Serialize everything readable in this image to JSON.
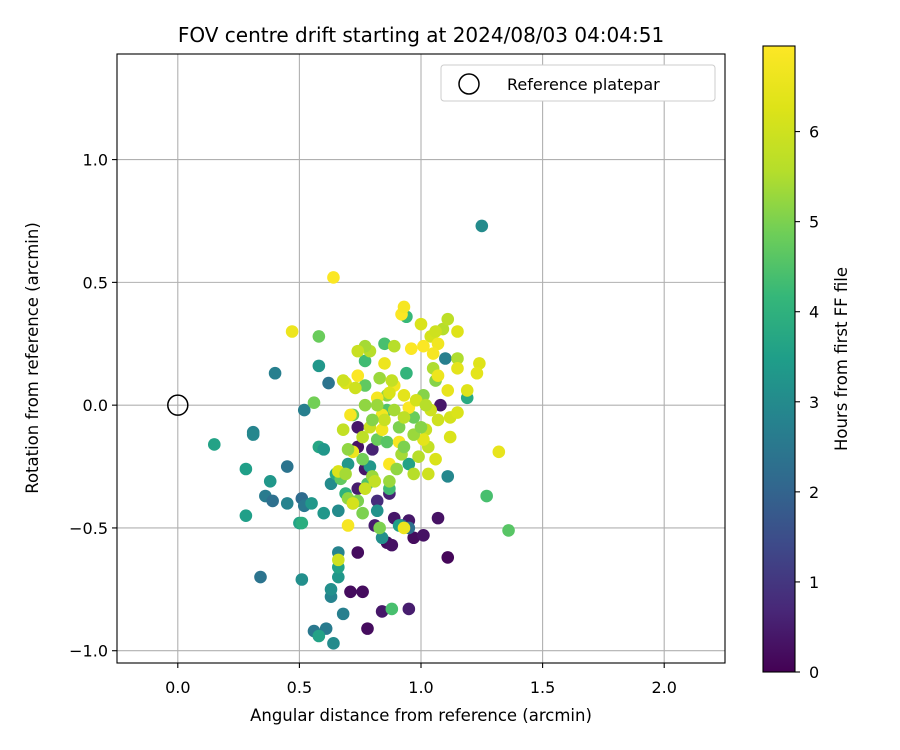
{
  "chart_data": {
    "type": "scatter",
    "title": "FOV centre drift starting at 2024/08/03 04:04:51",
    "xlabel": "Angular distance from reference (arcmin)",
    "ylabel": "Rotation from reference (arcmin)",
    "xlim": [
      -0.25,
      2.25
    ],
    "ylim": [
      -1.05,
      1.43
    ],
    "xticks": [
      0.0,
      0.5,
      1.0,
      1.5,
      2.0
    ],
    "xtick_labels": [
      "0.0",
      "0.5",
      "1.0",
      "1.5",
      "2.0"
    ],
    "yticks": [
      -1.0,
      -0.5,
      0.0,
      0.5,
      1.0
    ],
    "ytick_labels": [
      "−1.0",
      "−0.5",
      "0.0",
      "0.5",
      "1.0"
    ],
    "grid": true,
    "legend": {
      "placement": "upper-right",
      "entries": [
        "Reference platepar"
      ]
    },
    "reference_point": {
      "label": "Reference platepar",
      "x": 0.0,
      "y": 0.0
    },
    "colorbar": {
      "label": "Hours from first FF file",
      "range": [
        0,
        6.95
      ],
      "ticks": [
        0,
        1,
        2,
        3,
        4,
        5,
        6
      ],
      "tick_labels": [
        "0",
        "1",
        "2",
        "3",
        "4",
        "5",
        "6"
      ],
      "colormap": "viridis"
    },
    "points": [
      {
        "x": 0.74,
        "y": -0.6,
        "h": 0.2
      },
      {
        "x": 0.71,
        "y": -0.76,
        "h": 0.2
      },
      {
        "x": 0.76,
        "y": -0.76,
        "h": 0.2
      },
      {
        "x": 0.78,
        "y": -0.91,
        "h": 0.2
      },
      {
        "x": 0.84,
        "y": -0.84,
        "h": 0.4
      },
      {
        "x": 0.95,
        "y": -0.83,
        "h": 0.5
      },
      {
        "x": 1.11,
        "y": -0.62,
        "h": 0.1
      },
      {
        "x": 0.86,
        "y": -0.56,
        "h": 0.2
      },
      {
        "x": 0.88,
        "y": -0.57,
        "h": 0.3
      },
      {
        "x": 0.97,
        "y": -0.54,
        "h": 0.2
      },
      {
        "x": 1.01,
        "y": -0.53,
        "h": 0.3
      },
      {
        "x": 1.07,
        "y": -0.46,
        "h": 0.3
      },
      {
        "x": 0.89,
        "y": -0.46,
        "h": 0.4
      },
      {
        "x": 0.95,
        "y": -0.47,
        "h": 0.4
      },
      {
        "x": 0.81,
        "y": -0.49,
        "h": 0.5
      },
      {
        "x": 0.87,
        "y": -0.36,
        "h": 0.6
      },
      {
        "x": 0.74,
        "y": -0.34,
        "h": 0.5
      },
      {
        "x": 0.77,
        "y": -0.26,
        "h": 0.4
      },
      {
        "x": 0.74,
        "y": -0.17,
        "h": 0.3
      },
      {
        "x": 0.74,
        "y": -0.09,
        "h": 0.4
      },
      {
        "x": 0.8,
        "y": -0.18,
        "h": 0.6
      },
      {
        "x": 1.08,
        "y": 0.0,
        "h": 0.4
      },
      {
        "x": 0.82,
        "y": -0.39,
        "h": 0.8
      },
      {
        "x": 0.95,
        "y": -0.5,
        "h": 2.3
      },
      {
        "x": 0.92,
        "y": -0.49,
        "h": 2.1
      },
      {
        "x": 1.11,
        "y": -0.29,
        "h": 2.9
      },
      {
        "x": 1.1,
        "y": 0.19,
        "h": 2.7
      },
      {
        "x": 1.25,
        "y": 0.73,
        "h": 3.0
      },
      {
        "x": 0.4,
        "y": 0.13,
        "h": 2.7
      },
      {
        "x": 0.62,
        "y": 0.09,
        "h": 2.4
      },
      {
        "x": 0.52,
        "y": -0.02,
        "h": 2.7
      },
      {
        "x": 0.34,
        "y": -0.7,
        "h": 2.4
      },
      {
        "x": 0.61,
        "y": -0.91,
        "h": 2.6
      },
      {
        "x": 0.56,
        "y": -0.92,
        "h": 2.5
      },
      {
        "x": 0.64,
        "y": -0.97,
        "h": 3.0
      },
      {
        "x": 0.58,
        "y": -0.94,
        "h": 3.6
      },
      {
        "x": 0.68,
        "y": -0.85,
        "h": 2.7
      },
      {
        "x": 0.63,
        "y": -0.78,
        "h": 2.8
      },
      {
        "x": 0.63,
        "y": -0.75,
        "h": 3.1
      },
      {
        "x": 0.51,
        "y": -0.71,
        "h": 3.1
      },
      {
        "x": 0.66,
        "y": -0.7,
        "h": 3.3
      },
      {
        "x": 0.66,
        "y": -0.66,
        "h": 3.6
      },
      {
        "x": 0.66,
        "y": -0.6,
        "h": 2.8
      },
      {
        "x": 0.31,
        "y": -0.11,
        "h": 2.8
      },
      {
        "x": 0.31,
        "y": -0.12,
        "h": 2.9
      },
      {
        "x": 0.45,
        "y": -0.25,
        "h": 2.4
      },
      {
        "x": 0.36,
        "y": -0.37,
        "h": 2.6
      },
      {
        "x": 0.39,
        "y": -0.39,
        "h": 2.3
      },
      {
        "x": 0.45,
        "y": -0.4,
        "h": 2.8
      },
      {
        "x": 0.51,
        "y": -0.38,
        "h": 2.2
      },
      {
        "x": 0.52,
        "y": -0.41,
        "h": 2.5
      },
      {
        "x": 0.55,
        "y": -0.4,
        "h": 3.3
      },
      {
        "x": 0.38,
        "y": -0.31,
        "h": 3.3
      },
      {
        "x": 0.28,
        "y": -0.45,
        "h": 3.5
      },
      {
        "x": 0.15,
        "y": -0.16,
        "h": 3.6
      },
      {
        "x": 0.28,
        "y": -0.26,
        "h": 3.5
      },
      {
        "x": 0.5,
        "y": -0.48,
        "h": 3.6
      },
      {
        "x": 0.51,
        "y": -0.48,
        "h": 3.9
      },
      {
        "x": 0.6,
        "y": -0.44,
        "h": 3.3
      },
      {
        "x": 0.66,
        "y": -0.43,
        "h": 3.0
      },
      {
        "x": 0.63,
        "y": -0.32,
        "h": 3.0
      },
      {
        "x": 0.58,
        "y": -0.17,
        "h": 3.7
      },
      {
        "x": 0.6,
        "y": -0.18,
        "h": 3.3
      },
      {
        "x": 0.58,
        "y": 0.16,
        "h": 3.3
      },
      {
        "x": 0.82,
        "y": -0.43,
        "h": 3.2
      },
      {
        "x": 0.84,
        "y": -0.54,
        "h": 3.1
      },
      {
        "x": 0.91,
        "y": -0.49,
        "h": 3.5
      },
      {
        "x": 0.79,
        "y": -0.25,
        "h": 3.3
      },
      {
        "x": 0.7,
        "y": -0.24,
        "h": 3.3
      },
      {
        "x": 0.65,
        "y": -0.28,
        "h": 3.8
      },
      {
        "x": 0.69,
        "y": -0.36,
        "h": 4.0
      },
      {
        "x": 0.72,
        "y": -0.4,
        "h": 3.6
      },
      {
        "x": 0.95,
        "y": -0.24,
        "h": 3.6
      },
      {
        "x": 1.19,
        "y": 0.03,
        "h": 3.8
      },
      {
        "x": 1.27,
        "y": -0.37,
        "h": 4.4
      },
      {
        "x": 1.36,
        "y": -0.51,
        "h": 4.6
      },
      {
        "x": 0.88,
        "y": -0.83,
        "h": 4.4
      },
      {
        "x": 0.87,
        "y": -0.34,
        "h": 4.3
      },
      {
        "x": 0.58,
        "y": 0.28,
        "h": 4.8
      },
      {
        "x": 0.56,
        "y": 0.01,
        "h": 4.9
      },
      {
        "x": 0.94,
        "y": 0.36,
        "h": 4.2
      },
      {
        "x": 0.94,
        "y": 0.13,
        "h": 4.1
      },
      {
        "x": 0.85,
        "y": 0.25,
        "h": 4.4
      },
      {
        "x": 0.77,
        "y": 0.18,
        "h": 4.3
      },
      {
        "x": 0.77,
        "y": 0.08,
        "h": 4.7
      },
      {
        "x": 0.72,
        "y": -0.04,
        "h": 4.8
      },
      {
        "x": 0.82,
        "y": -0.14,
        "h": 4.8
      },
      {
        "x": 0.76,
        "y": -0.22,
        "h": 4.9
      },
      {
        "x": 0.78,
        "y": -0.32,
        "h": 4.5
      },
      {
        "x": 0.67,
        "y": -0.3,
        "h": 4.7
      },
      {
        "x": 0.7,
        "y": -0.38,
        "h": 5.2
      },
      {
        "x": 0.74,
        "y": -0.39,
        "h": 5.0
      },
      {
        "x": 0.8,
        "y": -0.29,
        "h": 5.3
      },
      {
        "x": 0.83,
        "y": -0.5,
        "h": 5.0
      },
      {
        "x": 0.86,
        "y": -0.15,
        "h": 4.6
      },
      {
        "x": 0.86,
        "y": -0.02,
        "h": 4.5
      },
      {
        "x": 0.91,
        "y": -0.09,
        "h": 5.0
      },
      {
        "x": 0.97,
        "y": -0.05,
        "h": 4.8
      },
      {
        "x": 1.01,
        "y": 0.04,
        "h": 5.1
      },
      {
        "x": 1.06,
        "y": 0.1,
        "h": 5.1
      },
      {
        "x": 1.05,
        "y": 0.15,
        "h": 5.5
      },
      {
        "x": 1.09,
        "y": 0.31,
        "h": 5.6
      },
      {
        "x": 1.11,
        "y": 0.35,
        "h": 5.7
      },
      {
        "x": 1.15,
        "y": 0.19,
        "h": 5.5
      },
      {
        "x": 0.83,
        "y": 0.11,
        "h": 5.3
      },
      {
        "x": 0.86,
        "y": 0.04,
        "h": 5.2
      },
      {
        "x": 0.79,
        "y": 0.22,
        "h": 5.6
      },
      {
        "x": 0.77,
        "y": 0.24,
        "h": 5.4
      },
      {
        "x": 0.89,
        "y": 0.24,
        "h": 5.6
      },
      {
        "x": 0.92,
        "y": -0.2,
        "h": 5.4
      },
      {
        "x": 0.99,
        "y": -0.21,
        "h": 5.6
      },
      {
        "x": 1.03,
        "y": -0.17,
        "h": 5.8
      },
      {
        "x": 0.97,
        "y": -0.28,
        "h": 5.6
      },
      {
        "x": 1.02,
        "y": -0.1,
        "h": 5.9
      },
      {
        "x": 1.07,
        "y": -0.06,
        "h": 6.0
      },
      {
        "x": 1.12,
        "y": -0.05,
        "h": 6.1
      },
      {
        "x": 1.12,
        "y": -0.13,
        "h": 6.2
      },
      {
        "x": 1.15,
        "y": -0.03,
        "h": 6.2
      },
      {
        "x": 1.19,
        "y": 0.06,
        "h": 6.3
      },
      {
        "x": 1.24,
        "y": 0.17,
        "h": 6.3
      },
      {
        "x": 1.23,
        "y": 0.13,
        "h": 6.4
      },
      {
        "x": 1.32,
        "y": -0.19,
        "h": 6.5
      },
      {
        "x": 1.04,
        "y": 0.28,
        "h": 6.1
      },
      {
        "x": 1.06,
        "y": 0.3,
        "h": 6.0
      },
      {
        "x": 1.0,
        "y": 0.33,
        "h": 6.2
      },
      {
        "x": 1.15,
        "y": 0.3,
        "h": 6.3
      },
      {
        "x": 1.15,
        "y": 0.15,
        "h": 6.4
      },
      {
        "x": 1.11,
        "y": 0.06,
        "h": 6.5
      },
      {
        "x": 1.07,
        "y": 0.12,
        "h": 6.6
      },
      {
        "x": 1.07,
        "y": 0.25,
        "h": 6.7
      },
      {
        "x": 1.05,
        "y": 0.21,
        "h": 6.8
      },
      {
        "x": 1.01,
        "y": 0.24,
        "h": 6.9
      },
      {
        "x": 0.92,
        "y": 0.37,
        "h": 6.9
      },
      {
        "x": 0.93,
        "y": 0.4,
        "h": 6.8
      },
      {
        "x": 0.96,
        "y": 0.23,
        "h": 6.9
      },
      {
        "x": 0.85,
        "y": 0.17,
        "h": 6.6
      },
      {
        "x": 0.89,
        "y": 0.08,
        "h": 6.7
      },
      {
        "x": 0.74,
        "y": 0.12,
        "h": 6.9
      },
      {
        "x": 0.71,
        "y": -0.04,
        "h": 6.8
      },
      {
        "x": 0.84,
        "y": -0.04,
        "h": 6.7
      },
      {
        "x": 0.82,
        "y": 0.03,
        "h": 6.8
      },
      {
        "x": 0.95,
        "y": -0.01,
        "h": 6.9
      },
      {
        "x": 0.91,
        "y": -0.15,
        "h": 6.8
      },
      {
        "x": 0.84,
        "y": -0.1,
        "h": 6.7
      },
      {
        "x": 0.87,
        "y": -0.24,
        "h": 6.9
      },
      {
        "x": 0.72,
        "y": -0.19,
        "h": 6.6
      },
      {
        "x": 0.7,
        "y": -0.49,
        "h": 6.8
      },
      {
        "x": 0.93,
        "y": -0.5,
        "h": 6.6
      },
      {
        "x": 0.66,
        "y": -0.27,
        "h": 6.2
      },
      {
        "x": 0.64,
        "y": 0.52,
        "h": 6.9
      },
      {
        "x": 0.47,
        "y": 0.3,
        "h": 6.6
      },
      {
        "x": 0.69,
        "y": 0.09,
        "h": 6.3
      },
      {
        "x": 0.73,
        "y": 0.07,
        "h": 6.0
      },
      {
        "x": 0.87,
        "y": 0.05,
        "h": 6.2
      },
      {
        "x": 0.93,
        "y": 0.04,
        "h": 6.4
      },
      {
        "x": 0.98,
        "y": 0.02,
        "h": 6.1
      },
      {
        "x": 1.04,
        "y": -0.02,
        "h": 6.0
      },
      {
        "x": 1.01,
        "y": -0.14,
        "h": 6.4
      },
      {
        "x": 1.06,
        "y": -0.22,
        "h": 6.2
      },
      {
        "x": 1.03,
        "y": -0.28,
        "h": 6.0
      },
      {
        "x": 0.81,
        "y": -0.31,
        "h": 5.8
      },
      {
        "x": 0.77,
        "y": -0.34,
        "h": 5.9
      },
      {
        "x": 0.72,
        "y": -0.4,
        "h": 6.1
      },
      {
        "x": 0.66,
        "y": -0.63,
        "h": 6.0
      },
      {
        "x": 0.68,
        "y": -0.1,
        "h": 5.8
      },
      {
        "x": 0.76,
        "y": -0.13,
        "h": 5.7
      },
      {
        "x": 0.79,
        "y": -0.09,
        "h": 5.9
      },
      {
        "x": 0.74,
        "y": 0.22,
        "h": 5.9
      },
      {
        "x": 0.68,
        "y": 0.1,
        "h": 6.0
      },
      {
        "x": 0.88,
        "y": 0.1,
        "h": 5.8
      },
      {
        "x": 0.85,
        "y": -0.06,
        "h": 5.9
      },
      {
        "x": 0.93,
        "y": -0.05,
        "h": 5.7
      },
      {
        "x": 1.02,
        "y": 0.0,
        "h": 5.6
      },
      {
        "x": 0.89,
        "y": -0.02,
        "h": 5.4
      },
      {
        "x": 0.82,
        "y": 0.0,
        "h": 5.3
      },
      {
        "x": 0.77,
        "y": 0.0,
        "h": 5.2
      },
      {
        "x": 0.8,
        "y": -0.06,
        "h": 5.1
      },
      {
        "x": 0.7,
        "y": -0.18,
        "h": 5.2
      },
      {
        "x": 0.69,
        "y": -0.28,
        "h": 5.4
      },
      {
        "x": 0.76,
        "y": -0.44,
        "h": 5.0
      },
      {
        "x": 0.87,
        "y": -0.31,
        "h": 5.3
      },
      {
        "x": 0.9,
        "y": -0.26,
        "h": 5.2
      },
      {
        "x": 0.93,
        "y": -0.17,
        "h": 5.0
      },
      {
        "x": 0.97,
        "y": -0.12,
        "h": 5.3
      },
      {
        "x": 1.0,
        "y": -0.09,
        "h": 5.1
      }
    ]
  }
}
